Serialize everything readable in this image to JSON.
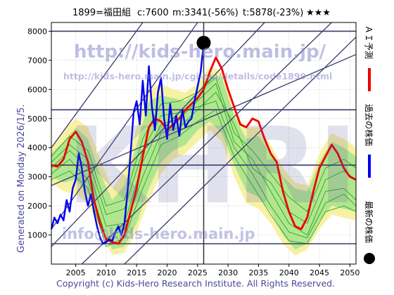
{
  "header": {
    "title": "1899=福田組",
    "current": "c:7600",
    "max_info": "m:3341(-56%)",
    "target_info": "t:5878(-23%)",
    "stars": "★★★"
  },
  "side_label": "Generated on Monday 2026/1/5.",
  "footer": "Copyright (c) Kids-Hero Research Institute. All Rights Reserved.",
  "watermarks": {
    "url_big": "http://kids-hero.main.jp/",
    "url_small": "http://kids-hero.main.jp/cgi-bin/details/code1899.html",
    "mail": "info@kids-hero.main.jp",
    "logo": "KHRI"
  },
  "legend": [
    {
      "label": "ＡＩ予測",
      "color": "#ee0000",
      "kind": "line"
    },
    {
      "label": "過去の株価",
      "color": "#0000ee",
      "kind": "line"
    },
    {
      "label": "最新の株価",
      "color": "#000000",
      "kind": "dot"
    }
  ],
  "colors": {
    "ai_forecast": "#ee0000",
    "past_price": "#0000ee",
    "band": "#f6f09a",
    "band_inner": "#9be08a",
    "ensemble": "#22aa22",
    "trend": "#3a3a6e",
    "grid": "#bbbbbb"
  },
  "chart_data": {
    "type": "line",
    "xlim": [
      2001,
      2051
    ],
    "ylim": [
      0,
      8300
    ],
    "x_ticks": [
      2005,
      2010,
      2015,
      2020,
      2025,
      2030,
      2035,
      2040,
      2045,
      2050
    ],
    "y_ticks": [
      1000,
      2000,
      3000,
      4000,
      5000,
      6000,
      7000,
      8000
    ],
    "hlines": [
      8000,
      5300,
      3400,
      700
    ],
    "vline": 2026,
    "latest": {
      "x": 2026,
      "y": 7600
    },
    "past_price": {
      "x": [
        2001,
        2001.5,
        2002,
        2002.5,
        2003,
        2003.5,
        2004,
        2004.5,
        2005,
        2005.5,
        2006,
        2006.5,
        2007,
        2007.5,
        2008,
        2008.5,
        2009,
        2009.5,
        2010,
        2010.5,
        2011,
        2011.5,
        2012,
        2012.5,
        2013,
        2013.5,
        2014,
        2014.5,
        2015,
        2015.5,
        2016,
        2016.5,
        2017,
        2017.5,
        2018,
        2018.5,
        2019,
        2019.5,
        2020,
        2020.5,
        2021,
        2021.5,
        2022,
        2022.5,
        2023,
        2023.5,
        2024,
        2024.5,
        2025,
        2025.5,
        2026
      ],
      "y": [
        1200,
        1600,
        1400,
        1700,
        1500,
        2200,
        1800,
        2600,
        2900,
        3800,
        3300,
        2500,
        2000,
        2400,
        1800,
        1300,
        900,
        700,
        750,
        850,
        800,
        1100,
        1300,
        1000,
        1400,
        2500,
        3800,
        5200,
        5600,
        4800,
        6300,
        5100,
        6800,
        5400,
        4600,
        5900,
        6400,
        5000,
        4300,
        5500,
        4600,
        5100,
        4400,
        5300,
        4700,
        4900,
        5000,
        5600,
        6100,
        6600,
        7600
      ]
    },
    "ai_forecast": {
      "x": [
        2001,
        2002,
        2003,
        2004,
        2005,
        2006,
        2007,
        2008,
        2009,
        2010,
        2011,
        2012,
        2013,
        2014,
        2015,
        2016,
        2017,
        2018,
        2019,
        2020,
        2021,
        2022,
        2023,
        2024,
        2025,
        2026,
        2027,
        2028,
        2029,
        2030,
        2031,
        2032,
        2033,
        2034,
        2035,
        2036,
        2037,
        2038,
        2039,
        2040,
        2041,
        2042,
        2043,
        2044,
        2045,
        2046,
        2047,
        2048,
        2049,
        2050,
        2051
      ],
      "y": [
        3400,
        3350,
        3600,
        4300,
        4550,
        4200,
        3500,
        2200,
        1400,
        850,
        750,
        700,
        1000,
        1800,
        2600,
        3700,
        4700,
        5000,
        4900,
        4600,
        4800,
        5000,
        5300,
        5500,
        5700,
        6000,
        6600,
        7100,
        6700,
        6000,
        5400,
        4800,
        4700,
        5000,
        4900,
        4300,
        3800,
        3500,
        2500,
        1800,
        1300,
        1200,
        1600,
        2500,
        3300,
        3700,
        4100,
        3800,
        3300,
        3000,
        2900
      ]
    },
    "band_outer": {
      "x": [
        2001,
        2003,
        2005,
        2007,
        2009,
        2011,
        2013,
        2015,
        2017,
        2019,
        2021,
        2023,
        2025,
        2027,
        2029,
        2031,
        2033,
        2035,
        2037,
        2039,
        2041,
        2043,
        2045,
        2047,
        2049,
        2051
      ],
      "upper": [
        4000,
        4600,
        5000,
        4700,
        3600,
        2600,
        3200,
        4700,
        6000,
        6200,
        6000,
        5900,
        6200,
        6800,
        6600,
        5200,
        4700,
        4700,
        4100,
        3300,
        2800,
        2700,
        3800,
        4500,
        4300,
        4000
      ],
      "lower": [
        2800,
        2500,
        2400,
        2100,
        1200,
        300,
        400,
        1100,
        2200,
        3100,
        3600,
        3800,
        4200,
        4600,
        4200,
        3000,
        2100,
        1900,
        1400,
        700,
        300,
        500,
        1200,
        1700,
        1600,
        1500
      ]
    },
    "band_inner": {
      "x": [
        2001,
        2003,
        2005,
        2007,
        2009,
        2011,
        2013,
        2015,
        2017,
        2019,
        2021,
        2023,
        2025,
        2027,
        2029,
        2031,
        2033,
        2035,
        2037,
        2039,
        2041,
        2043,
        2045,
        2047,
        2049,
        2051
      ],
      "upper": [
        3800,
        4200,
        4700,
        4300,
        3100,
        2200,
        2700,
        4100,
        5600,
        5800,
        5700,
        5600,
        5900,
        6500,
        6400,
        5100,
        4300,
        4400,
        3800,
        3000,
        2600,
        2500,
        3500,
        4200,
        4000,
        3700
      ],
      "lower": [
        3000,
        2800,
        2900,
        2400,
        1500,
        500,
        600,
        1400,
        2600,
        3500,
        3900,
        4100,
        4600,
        4900,
        4500,
        3400,
        2500,
        2300,
        1800,
        1000,
        500,
        700,
        1500,
        2000,
        1900,
        1800
      ]
    },
    "ensemble": [
      {
        "x": [
          2001,
          2004,
          2007,
          2010,
          2013,
          2016,
          2019,
          2022,
          2025,
          2028,
          2031,
          2034,
          2037,
          2040,
          2043,
          2046,
          2049,
          2051
        ],
        "y": [
          3300,
          3900,
          3300,
          1300,
          1400,
          3500,
          4800,
          5000,
          5600,
          6200,
          4200,
          3600,
          2500,
          1400,
          1000,
          2500,
          2600,
          2200
        ]
      },
      {
        "x": [
          2001,
          2004,
          2007,
          2010,
          2013,
          2016,
          2019,
          2022,
          2025,
          2028,
          2031,
          2034,
          2037,
          2040,
          2043,
          2046,
          2049,
          2051
        ],
        "y": [
          3100,
          3600,
          2900,
          900,
          1200,
          3000,
          4500,
          4700,
          5300,
          5900,
          4800,
          3300,
          2800,
          1800,
          1400,
          2900,
          3200,
          2900
        ]
      },
      {
        "x": [
          2001,
          2004,
          2007,
          2010,
          2013,
          2016,
          2019,
          2022,
          2025,
          2028,
          2031,
          2034,
          2037,
          2040,
          2043,
          2046,
          2049,
          2051
        ],
        "y": [
          3500,
          4100,
          3600,
          1700,
          1900,
          3900,
          5100,
          5200,
          5400,
          5600,
          4000,
          3100,
          2000,
          1100,
          900,
          2100,
          2400,
          2000
        ]
      },
      {
        "x": [
          2001,
          2004,
          2007,
          2010,
          2013,
          2016,
          2019,
          2022,
          2025,
          2028,
          2031,
          2034,
          2037,
          2040,
          2043,
          2046,
          2049,
          2051
        ],
        "y": [
          2900,
          3200,
          2600,
          600,
          900,
          2600,
          4100,
          4400,
          4900,
          5300,
          3700,
          2700,
          1700,
          800,
          700,
          1800,
          2000,
          1800
        ]
      },
      {
        "x": [
          2001,
          2004,
          2007,
          2010,
          2013,
          2016,
          2019,
          2022,
          2025,
          2028,
          2031,
          2034,
          2037,
          2040,
          2043,
          2046,
          2049,
          2051
        ],
        "y": [
          3700,
          4400,
          3900,
          2000,
          2200,
          4300,
          5500,
          5600,
          5900,
          6400,
          4500,
          3900,
          3100,
          2300,
          1800,
          3300,
          3600,
          3300
        ]
      }
    ],
    "trend_lines": [
      {
        "x": [
          2001,
          2025
        ],
        "y": [
          1200,
          8300
        ]
      },
      {
        "x": [
          2001,
          2036
        ],
        "y": [
          600,
          8300
        ]
      },
      {
        "x": [
          2006,
          2047
        ],
        "y": [
          0,
          8300
        ]
      },
      {
        "x": [
          2013,
          2051
        ],
        "y": [
          0,
          7800
        ]
      },
      {
        "x": [
          2001,
          2016
        ],
        "y": [
          4000,
          8300
        ]
      },
      {
        "x": [
          2001,
          2051
        ],
        "y": [
          2700,
          7200
        ]
      }
    ]
  }
}
